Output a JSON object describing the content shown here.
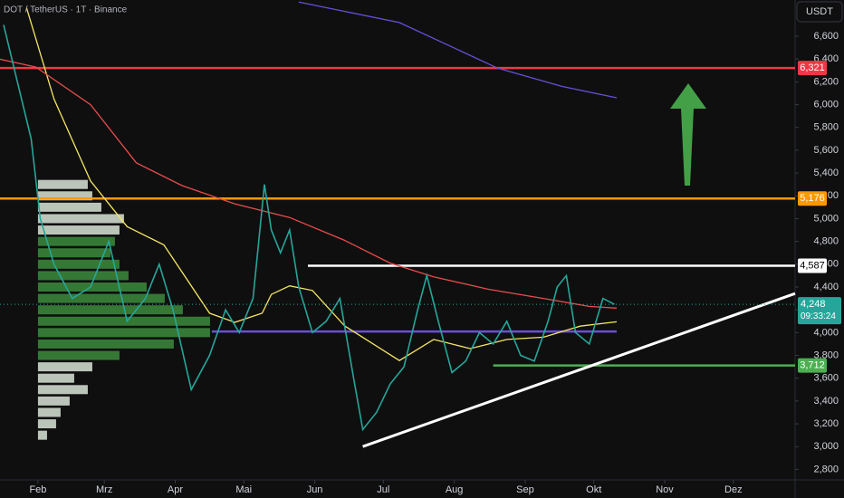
{
  "chart_data": {
    "type": "line",
    "title": "DOT / TetherUS · 1T · Binance",
    "currency": "USDT",
    "color": "#26a69a",
    "x": [
      16,
      22,
      28,
      32,
      38,
      46,
      54,
      62,
      70,
      78,
      84,
      90,
      98,
      106,
      113,
      119,
      125,
      130,
      133,
      137,
      141,
      145,
      151,
      157,
      163,
      169,
      173,
      179,
      185,
      191,
      197,
      201,
      206,
      212,
      218,
      224,
      230,
      236,
      242,
      248,
      254,
      258,
      262,
      266,
      272,
      278,
      283
    ],
    "values": [
      6700,
      6200,
      5700,
      5000,
      4600,
      4300,
      4400,
      4800,
      4100,
      4300,
      4600,
      4200,
      3500,
      3800,
      4200,
      4000,
      4300,
      5300,
      4900,
      4700,
      4900,
      4400,
      4000,
      4100,
      4300,
      3600,
      3150,
      3300,
      3550,
      3700,
      4200,
      4500,
      4100,
      3650,
      3750,
      4000,
      3900,
      4100,
      3800,
      3750,
      4100,
      4400,
      4500,
      4000,
      3900,
      4300,
      4248
    ],
    "xlim": [
      14.4,
      362
    ],
    "xticks": [
      {
        "value": 31,
        "label": "Feb"
      },
      {
        "value": 60,
        "label": "Mrz"
      },
      {
        "value": 91,
        "label": "Apr"
      },
      {
        "value": 121,
        "label": "Mai"
      },
      {
        "value": 152,
        "label": "Jun"
      },
      {
        "value": 182,
        "label": "Jul"
      },
      {
        "value": 213,
        "label": "Aug"
      },
      {
        "value": 244,
        "label": "Sep"
      },
      {
        "value": 274,
        "label": "Okt"
      },
      {
        "value": 305,
        "label": "Nov"
      },
      {
        "value": 335,
        "label": "Dez"
      }
    ],
    "ylim": [
      2708,
      6918
    ],
    "yticks": [
      {
        "value": 2800,
        "label": "2,800"
      },
      {
        "value": 3000,
        "label": "3,000"
      },
      {
        "value": 3200,
        "label": "3,200"
      },
      {
        "value": 3400,
        "label": "3,400"
      },
      {
        "value": 3600,
        "label": "3,600"
      },
      {
        "value": 3800,
        "label": "3,800"
      },
      {
        "value": 4000,
        "label": "4,000"
      },
      {
        "value": 4200,
        "label": "4,200"
      },
      {
        "value": 4400,
        "label": "4,400"
      },
      {
        "value": 4600,
        "label": "4,600"
      },
      {
        "value": 4800,
        "label": "4,800"
      },
      {
        "value": 5000,
        "label": "5,000"
      },
      {
        "value": 5200,
        "label": "5,200"
      },
      {
        "value": 5400,
        "label": "5,400"
      },
      {
        "value": 5600,
        "label": "5,600"
      },
      {
        "value": 5800,
        "label": "5,800"
      },
      {
        "value": 6000,
        "label": "6,000"
      },
      {
        "value": 6200,
        "label": "6,200"
      },
      {
        "value": 6400,
        "label": "6,400"
      },
      {
        "value": 6600,
        "label": "6,600"
      }
    ],
    "moving_averages": [
      {
        "color": "#f5e663",
        "x": [
          26,
          38,
          54,
          70,
          86,
          106,
          117,
          129,
          133,
          141,
          151,
          165,
          189,
          204,
          220,
          236,
          252,
          268,
          284
        ],
        "values": [
          6850,
          6050,
          5330,
          4930,
          4770,
          4170,
          4090,
          4170,
          4335,
          4410,
          4370,
          4060,
          3755,
          3940,
          3860,
          3940,
          3960,
          4057,
          4095
        ]
      },
      {
        "color": "#e84c4c",
        "x": [
          14,
          30,
          54,
          74,
          94,
          117,
          141,
          165,
          185,
          204,
          228,
          252,
          272,
          284
        ],
        "values": [
          6400,
          6330,
          6000,
          5490,
          5290,
          5130,
          5010,
          4810,
          4610,
          4490,
          4380,
          4300,
          4230,
          4215
        ]
      },
      {
        "color": "#6a4fd8",
        "x": [
          145,
          189,
          232,
          260,
          284
        ],
        "values": [
          6900,
          6720,
          6320,
          6160,
          6060
        ]
      }
    ],
    "levels": [
      {
        "value": 6321,
        "value_label": "6,321",
        "color": "#f23645",
        "x_start": 14.4
      },
      {
        "value": 5176,
        "value_label": "5,176",
        "color": "#ff9800",
        "x_start": 14.4
      },
      {
        "value": 4587,
        "value_label": "4,587",
        "color": "#ffffff",
        "x_start": 149
      },
      {
        "value": 3712,
        "value_label": "3,712",
        "color": "#4caf50",
        "x_start": 230
      }
    ],
    "support": {
      "value": 4010,
      "color": "#6a4fd8",
      "x": [
        107,
        284
      ]
    },
    "current": {
      "value": 4248,
      "value_label": "4,248",
      "countdown": "09:33:24",
      "color": "#26a69a"
    },
    "trendline": {
      "color": "#ffffff",
      "x": [
        173,
        362
      ],
      "values": [
        3000,
        4343
      ]
    },
    "volume_profile": {
      "levels": [
        5300,
        5200,
        5100,
        5000,
        4900,
        4800,
        4700,
        4600,
        4500,
        4400,
        4300,
        4200,
        4100,
        4000,
        3900,
        3800,
        3700,
        3600,
        3500,
        3400,
        3300,
        3200,
        3100
      ],
      "values": [
        55,
        60,
        70,
        95,
        90,
        85,
        80,
        90,
        100,
        120,
        140,
        160,
        190,
        190,
        150,
        90,
        60,
        40,
        55,
        35,
        25,
        20,
        10
      ],
      "colors": [
        "#d9e4d6",
        "#d9e4d6",
        "#d9e4d6",
        "#d9e4d6",
        "#d9e4d6",
        "#3c8b3c",
        "#3c8b3c",
        "#3c8b3c",
        "#3c8b3c",
        "#3c8b3c",
        "#3c8b3c",
        "#3c8b3c",
        "#3c8b3c",
        "#3c8b3c",
        "#3c8b3c",
        "#3c8b3c",
        "#d9e4d6",
        "#d9e4d6",
        "#d9e4d6",
        "#d9e4d6",
        "#d9e4d6",
        "#d9e4d6",
        "#d9e4d6"
      ]
    }
  }
}
